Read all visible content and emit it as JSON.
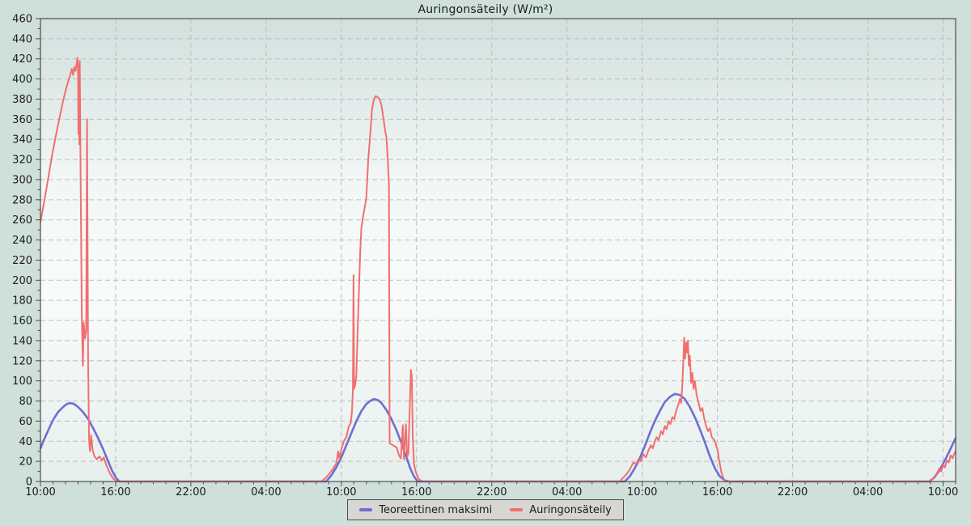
{
  "window": {
    "title": "Auringonsäteily (W/m²)"
  },
  "colors": {
    "page_bg": "#cfe0db",
    "plot_bg_top": "#d2e0dd",
    "plot_bg_mid": "#f2f7f6",
    "plot_bg_light": "#f8fbfa",
    "plot_bg_bottom": "#e7efed",
    "grid": "#b9c0c0",
    "axis": "#4d4d4d",
    "text": "#1b1b1b",
    "series_blue": "#6e6ed2",
    "series_red": "#f16f6f"
  },
  "chart_data": {
    "type": "line",
    "title": "Auringonsäteily (W/m²)",
    "ylabel": "W/m²",
    "legend_position": "bottom-center",
    "grid": "dashed major gridlines both directions",
    "x_axis": {
      "description": "time over ~3 days, hours since first sample at 10:00",
      "range_hours": [
        0,
        73
      ],
      "major_tick_every_hours": 6,
      "minor_tick_every_hours": 1,
      "tick_labels": [
        "10:00",
        "16:00",
        "22:00",
        "04:00",
        "10:00",
        "16:00",
        "22:00",
        "04:00",
        "10:00",
        "16:00",
        "22:00",
        "04:00",
        "10:00"
      ]
    },
    "y_axis": {
      "range": [
        0,
        460
      ],
      "major_tick_every": 20,
      "minor_tick_every": 10,
      "tick_labels": [
        "0",
        "20",
        "40",
        "60",
        "80",
        "100",
        "120",
        "140",
        "160",
        "180",
        "200",
        "220",
        "240",
        "260",
        "280",
        "300",
        "320",
        "340",
        "360",
        "380",
        "400",
        "420",
        "440",
        "460"
      ]
    },
    "series": [
      {
        "name": "Teoreettinen maksimi",
        "color": "#6e6ed2",
        "stroke_width": 2.6,
        "points": [
          [
            0,
            33
          ],
          [
            0.3,
            42
          ],
          [
            0.7,
            53
          ],
          [
            1.0,
            61
          ],
          [
            1.4,
            69
          ],
          [
            1.8,
            74
          ],
          [
            2.1,
            77
          ],
          [
            2.4,
            78
          ],
          [
            2.7,
            77
          ],
          [
            3.0,
            74
          ],
          [
            3.4,
            69
          ],
          [
            3.8,
            62
          ],
          [
            4.2,
            53
          ],
          [
            4.6,
            43
          ],
          [
            5.0,
            32
          ],
          [
            5.4,
            20
          ],
          [
            5.7,
            11
          ],
          [
            6.0,
            4
          ],
          [
            6.3,
            0
          ],
          [
            22.8,
            0
          ],
          [
            23.2,
            6
          ],
          [
            23.6,
            14
          ],
          [
            24.0,
            24
          ],
          [
            24.4,
            36
          ],
          [
            24.8,
            48
          ],
          [
            25.2,
            60
          ],
          [
            25.6,
            70
          ],
          [
            26.0,
            77
          ],
          [
            26.3,
            80
          ],
          [
            26.6,
            82
          ],
          [
            26.9,
            81
          ],
          [
            27.2,
            78
          ],
          [
            27.6,
            71
          ],
          [
            28.0,
            62
          ],
          [
            28.4,
            51
          ],
          [
            28.8,
            38
          ],
          [
            29.2,
            24
          ],
          [
            29.5,
            13
          ],
          [
            29.8,
            5
          ],
          [
            30.1,
            0
          ],
          [
            46.6,
            0
          ],
          [
            47.0,
            5
          ],
          [
            47.4,
            13
          ],
          [
            47.8,
            23
          ],
          [
            48.2,
            35
          ],
          [
            48.6,
            48
          ],
          [
            49.0,
            60
          ],
          [
            49.4,
            70
          ],
          [
            49.8,
            79
          ],
          [
            50.2,
            84
          ],
          [
            50.6,
            87
          ],
          [
            51.0,
            86
          ],
          [
            51.4,
            82
          ],
          [
            51.8,
            74
          ],
          [
            52.2,
            64
          ],
          [
            52.6,
            52
          ],
          [
            53.0,
            39
          ],
          [
            53.4,
            25
          ],
          [
            53.8,
            13
          ],
          [
            54.2,
            5
          ],
          [
            54.6,
            1
          ],
          [
            54.9,
            0
          ],
          [
            70.9,
            0
          ],
          [
            71.3,
            4
          ],
          [
            71.7,
            11
          ],
          [
            72.1,
            20
          ],
          [
            72.5,
            30
          ],
          [
            72.8,
            38
          ],
          [
            73,
            43
          ]
        ]
      },
      {
        "name": "Auringonsäteily",
        "color": "#f16f6f",
        "stroke_width": 2,
        "points": [
          [
            0,
            258
          ],
          [
            0.3,
            278
          ],
          [
            0.6,
            300
          ],
          [
            0.9,
            322
          ],
          [
            1.2,
            342
          ],
          [
            1.5,
            360
          ],
          [
            1.8,
            378
          ],
          [
            2.1,
            393
          ],
          [
            2.35,
            403
          ],
          [
            2.5,
            410
          ],
          [
            2.6,
            404
          ],
          [
            2.7,
            412
          ],
          [
            2.8,
            408
          ],
          [
            2.95,
            421
          ],
          [
            3.0,
            408
          ],
          [
            3.03,
            345
          ],
          [
            3.06,
            415
          ],
          [
            3.1,
            335
          ],
          [
            3.14,
            418
          ],
          [
            3.2,
            305
          ],
          [
            3.3,
            165
          ],
          [
            3.38,
            115
          ],
          [
            3.45,
            158
          ],
          [
            3.55,
            142
          ],
          [
            3.65,
            150
          ],
          [
            3.72,
            360
          ],
          [
            3.8,
            118
          ],
          [
            3.88,
            42
          ],
          [
            3.95,
            30
          ],
          [
            4.05,
            46
          ],
          [
            4.15,
            32
          ],
          [
            4.3,
            25
          ],
          [
            4.5,
            22
          ],
          [
            4.7,
            25
          ],
          [
            4.9,
            21
          ],
          [
            5.05,
            24
          ],
          [
            5.2,
            18
          ],
          [
            5.5,
            9
          ],
          [
            5.8,
            3
          ],
          [
            6.1,
            0
          ],
          [
            22.4,
            0
          ],
          [
            22.7,
            3
          ],
          [
            23.0,
            7
          ],
          [
            23.3,
            12
          ],
          [
            23.6,
            18
          ],
          [
            23.75,
            30
          ],
          [
            23.85,
            22
          ],
          [
            24.0,
            32
          ],
          [
            24.2,
            40
          ],
          [
            24.4,
            44
          ],
          [
            24.6,
            55
          ],
          [
            24.75,
            58
          ],
          [
            24.85,
            70
          ],
          [
            24.92,
            90
          ],
          [
            24.97,
            205
          ],
          [
            25.02,
            92
          ],
          [
            25.1,
            96
          ],
          [
            25.2,
            105
          ],
          [
            25.3,
            150
          ],
          [
            25.5,
            227
          ],
          [
            25.6,
            252
          ],
          [
            25.75,
            264
          ],
          [
            25.9,
            275
          ],
          [
            26.0,
            283
          ],
          [
            26.15,
            320
          ],
          [
            26.3,
            344
          ],
          [
            26.45,
            370
          ],
          [
            26.6,
            380
          ],
          [
            26.75,
            383
          ],
          [
            26.9,
            382
          ],
          [
            27.05,
            380
          ],
          [
            27.2,
            374
          ],
          [
            27.35,
            362
          ],
          [
            27.5,
            348
          ],
          [
            27.6,
            342
          ],
          [
            27.7,
            320
          ],
          [
            27.8,
            295
          ],
          [
            27.85,
            38
          ],
          [
            28.1,
            36
          ],
          [
            28.4,
            34
          ],
          [
            28.6,
            26
          ],
          [
            28.75,
            23
          ],
          [
            28.9,
            56
          ],
          [
            29.0,
            22
          ],
          [
            29.15,
            57
          ],
          [
            29.25,
            24
          ],
          [
            29.35,
            28
          ],
          [
            29.55,
            111
          ],
          [
            29.62,
            105
          ],
          [
            29.7,
            44
          ],
          [
            29.8,
            17
          ],
          [
            29.95,
            9
          ],
          [
            30.2,
            2
          ],
          [
            30.5,
            0
          ],
          [
            46.2,
            0
          ],
          [
            46.5,
            4
          ],
          [
            46.8,
            8
          ],
          [
            47.1,
            14
          ],
          [
            47.3,
            19
          ],
          [
            47.5,
            17
          ],
          [
            47.7,
            22
          ],
          [
            47.9,
            20
          ],
          [
            48.1,
            27
          ],
          [
            48.3,
            24
          ],
          [
            48.5,
            31
          ],
          [
            48.7,
            36
          ],
          [
            48.85,
            33
          ],
          [
            49.0,
            40
          ],
          [
            49.15,
            44
          ],
          [
            49.3,
            41
          ],
          [
            49.5,
            50
          ],
          [
            49.65,
            47
          ],
          [
            49.8,
            55
          ],
          [
            49.95,
            52
          ],
          [
            50.1,
            60
          ],
          [
            50.25,
            57
          ],
          [
            50.4,
            64
          ],
          [
            50.55,
            62
          ],
          [
            50.7,
            70
          ],
          [
            50.85,
            75
          ],
          [
            51.0,
            82
          ],
          [
            51.1,
            78
          ],
          [
            51.2,
            95
          ],
          [
            51.28,
            120
          ],
          [
            51.35,
            143
          ],
          [
            51.42,
            122
          ],
          [
            51.5,
            138
          ],
          [
            51.58,
            128
          ],
          [
            51.65,
            140
          ],
          [
            51.72,
            115
          ],
          [
            51.8,
            125
          ],
          [
            51.9,
            98
          ],
          [
            52.0,
            108
          ],
          [
            52.1,
            92
          ],
          [
            52.2,
            100
          ],
          [
            52.35,
            85
          ],
          [
            52.5,
            78
          ],
          [
            52.65,
            70
          ],
          [
            52.8,
            73
          ],
          [
            52.95,
            62
          ],
          [
            53.1,
            55
          ],
          [
            53.25,
            50
          ],
          [
            53.4,
            53
          ],
          [
            53.55,
            44
          ],
          [
            53.7,
            42
          ],
          [
            53.85,
            38
          ],
          [
            54.0,
            32
          ],
          [
            54.15,
            20
          ],
          [
            54.3,
            10
          ],
          [
            54.45,
            4
          ],
          [
            54.6,
            0
          ],
          [
            70.9,
            0
          ],
          [
            71.2,
            3
          ],
          [
            71.5,
            8
          ],
          [
            71.7,
            13
          ],
          [
            71.85,
            10
          ],
          [
            72.0,
            17
          ],
          [
            72.15,
            14
          ],
          [
            72.3,
            21
          ],
          [
            72.45,
            19
          ],
          [
            72.6,
            26
          ],
          [
            72.75,
            23
          ],
          [
            72.9,
            28
          ],
          [
            73.0,
            30
          ]
        ]
      }
    ]
  }
}
